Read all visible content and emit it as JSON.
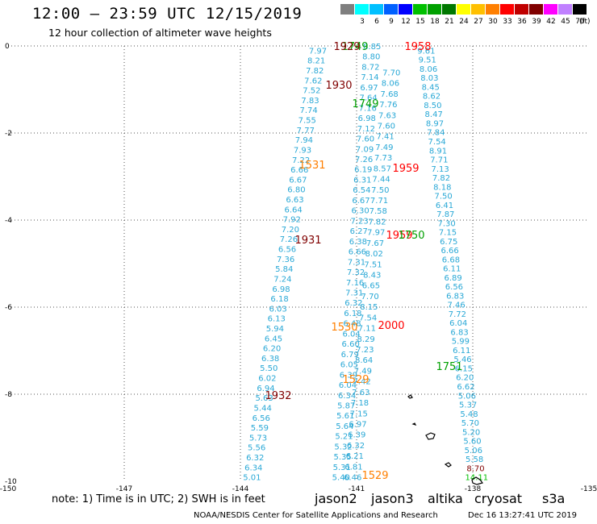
{
  "header": {
    "title": "12:00 – 23:59 UTC 12/15/2019",
    "subtitle": "12 hour collection of altimeter wave heights"
  },
  "legend": {
    "unit": "(ft)",
    "bins": [
      {
        "label": "",
        "color": "#7f7f7f"
      },
      {
        "label": "3",
        "color": "#00ffff"
      },
      {
        "label": "6",
        "color": "#00c0ff"
      },
      {
        "label": "9",
        "color": "#0060ff"
      },
      {
        "label": "12",
        "color": "#0000ff"
      },
      {
        "label": "15",
        "color": "#00c000"
      },
      {
        "label": "18",
        "color": "#00a000"
      },
      {
        "label": "21",
        "color": "#007800"
      },
      {
        "label": "24",
        "color": "#ffff00"
      },
      {
        "label": "27",
        "color": "#ffc000"
      },
      {
        "label": "30",
        "color": "#ff7f00"
      },
      {
        "label": "33",
        "color": "#ff0000"
      },
      {
        "label": "36",
        "color": "#c00000"
      },
      {
        "label": "39",
        "color": "#800000"
      },
      {
        "label": "42",
        "color": "#ff00ff"
      },
      {
        "label": "45",
        "color": "#c080ff"
      },
      {
        "label": "70",
        "color": "#000000"
      }
    ]
  },
  "axes": {
    "x_ticks": [
      "-150",
      "-147",
      "-144",
      "-141",
      "-138",
      "-135"
    ],
    "y_ticks": [
      "0",
      "-2",
      "-4",
      "-6",
      "-8",
      "-10"
    ],
    "lon_range": [
      -150,
      -135
    ],
    "lat_range": [
      -10,
      0
    ]
  },
  "tracks": [
    {
      "values": [
        "7.97",
        "8.21",
        "7.82",
        "7.62",
        "7.52",
        "7.83",
        "7.74",
        "7.55",
        "7.77",
        "7.94",
        "7.93",
        "7.22",
        "6.66",
        "6.67",
        "6.80",
        "6.63",
        "6.64",
        "7.92",
        "7.20",
        "7.26",
        "6.56",
        "7.36",
        "5.84",
        "7.24",
        "6.98",
        "6.18",
        "6.03",
        "6.13",
        "5.94",
        "6.45",
        "6.20",
        "6.38",
        "5.50",
        "6.02",
        "6.94",
        "5.63",
        "5.44",
        "6.56",
        "5.59",
        "5.73",
        "5.56",
        "6.32",
        "6.34",
        "5.01"
      ],
      "start": [
        -142.0,
        -0.1
      ],
      "end": [
        -143.7,
        -9.9
      ],
      "color": "#29a8d6"
    },
    {
      "values": [
        "8.85",
        "8.80",
        "8.72",
        "7.14",
        "6.97",
        "7.64",
        "7.16",
        "6.98",
        "7.12",
        "7.60",
        "7.09",
        "7.26",
        "6.19",
        "6.31",
        "6.54",
        "6.67",
        "6.30",
        "7.23",
        "6.27",
        "6.38",
        "6.66",
        "7.31",
        "7.32",
        "7.16",
        "7.31",
        "6.32",
        "6.18",
        "6.48",
        "6.04",
        "6.60",
        "6.79",
        "6.05",
        "6.39",
        "6.04",
        "6.34",
        "5.87",
        "5.61",
        "5.64",
        "5.21",
        "5.32",
        "5.35",
        "5.31",
        "5.40"
      ],
      "start": [
        -140.6,
        0.0
      ],
      "end": [
        -141.4,
        -9.9
      ],
      "color": "#29a8d6"
    },
    {
      "values": [
        "9.61",
        "9.51",
        "8.06",
        "8.03",
        "8.45",
        "8.62",
        "8.50",
        "8.47",
        "8.97",
        "7.84",
        "7.54",
        "8.91",
        "7.71",
        "7.13",
        "7.82",
        "8.18",
        "7.50",
        "6.41",
        "7.87",
        "7.30",
        "7.15",
        "6.75",
        "6.66",
        "6.68",
        "6.11",
        "6.89",
        "6.56",
        "6.83",
        "7.46",
        "7.72",
        "6.04",
        "6.83",
        "5.99",
        "6.11",
        "5.46",
        "6.15",
        "6.20",
        "6.62",
        "5.06",
        "5.37",
        "5.48",
        "5.70",
        "5.20",
        "5.60",
        "5.06",
        "5.58",
        "8.70",
        "14.11"
      ],
      "start": [
        -139.2,
        -0.1
      ],
      "end": [
        -137.9,
        -9.9
      ],
      "color": "#29a8d6"
    },
    {
      "values": [
        "7.70",
        "8.06",
        "7.68",
        "7.76",
        "7.63",
        "7.60",
        "7.41",
        "7.49",
        "7.73",
        "8.57",
        "7.44",
        "7.50",
        "7.71",
        "7.58",
        "7.82",
        "7.97",
        "7.67",
        "8.02",
        "7.51",
        "8.43",
        "6.65",
        "7.70",
        "8.15",
        "7.54",
        "7.11",
        "8.29",
        "7.23",
        "8.64",
        "7.49",
        "7.42",
        "7.63",
        "7.18",
        "7.15",
        "6.97",
        "6.39",
        "6.32",
        "6.21",
        "6.81",
        "6.46"
      ],
      "start": [
        -140.1,
        -0.6
      ],
      "end": [
        -141.1,
        -9.9
      ],
      "color": "#29a8d6"
    }
  ],
  "annotations": [
    {
      "text": "1749",
      "color": "#00a000"
    },
    {
      "text": "1929",
      "color": "#800000"
    },
    {
      "text": "1958",
      "color": "#ff0000"
    },
    {
      "text": "1930",
      "color": "#800000"
    },
    {
      "text": "1749",
      "color": "#00a000"
    },
    {
      "text": "1531",
      "color": "#ff7f00"
    },
    {
      "text": "1959",
      "color": "#ff0000"
    },
    {
      "text": "1931",
      "color": "#800000"
    },
    {
      "text": "1959",
      "color": "#ff0000"
    },
    {
      "text": "1750",
      "color": "#00a000"
    },
    {
      "text": "1530",
      "color": "#ff7f00"
    },
    {
      "text": "2000",
      "color": "#ff0000"
    },
    {
      "text": "1751",
      "color": "#00a000"
    },
    {
      "text": "1529",
      "color": "#ff7f00"
    },
    {
      "text": "1932",
      "color": "#800000"
    },
    {
      "text": "1529",
      "color": "#ff7f00"
    }
  ],
  "footer": {
    "note": "note:  1) Time is in UTC;  2) SWH is in feet",
    "satellites": [
      {
        "name": "jason2",
        "color": "#0000ff"
      },
      {
        "name": "jason3",
        "color": "#00a000"
      },
      {
        "name": "altika",
        "color": "#ff7f00"
      },
      {
        "name": "cryosat",
        "color": "#ff0000"
      },
      {
        "name": "s3a",
        "color": "#800000"
      }
    ],
    "credit": "NOAA/NESDIS Center for Satellite Applications and Research",
    "timestamp": "Dec 16 13:27:41 UTC 2019"
  }
}
